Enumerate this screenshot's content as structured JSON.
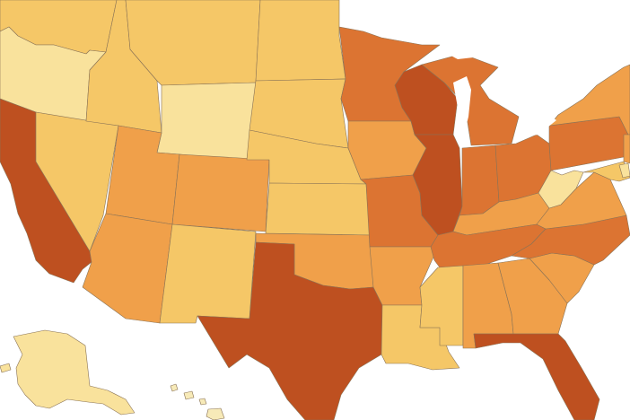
{
  "map": {
    "palette": {
      "lightest": "#f7eab8",
      "light": "#f9e29c",
      "mid_light": "#f5c767",
      "mid": "#f0a04a",
      "mid_dark": "#dc7432",
      "dark": "#be5020"
    },
    "states": [
      {
        "id": "WA",
        "shade": "mid_light"
      },
      {
        "id": "OR",
        "shade": "light"
      },
      {
        "id": "CA",
        "shade": "dark"
      },
      {
        "id": "NV",
        "shade": "mid_light"
      },
      {
        "id": "ID",
        "shade": "mid_light"
      },
      {
        "id": "MT",
        "shade": "mid_light"
      },
      {
        "id": "WY",
        "shade": "light"
      },
      {
        "id": "UT",
        "shade": "mid"
      },
      {
        "id": "CO",
        "shade": "mid"
      },
      {
        "id": "AZ",
        "shade": "mid"
      },
      {
        "id": "NM",
        "shade": "mid_light"
      },
      {
        "id": "ND",
        "shade": "mid_light"
      },
      {
        "id": "SD",
        "shade": "mid_light"
      },
      {
        "id": "NE",
        "shade": "mid_light"
      },
      {
        "id": "KS",
        "shade": "mid_light"
      },
      {
        "id": "OK",
        "shade": "mid"
      },
      {
        "id": "TX",
        "shade": "dark"
      },
      {
        "id": "MN",
        "shade": "mid_dark"
      },
      {
        "id": "IA",
        "shade": "mid"
      },
      {
        "id": "MO",
        "shade": "mid_dark"
      },
      {
        "id": "AR",
        "shade": "mid"
      },
      {
        "id": "LA",
        "shade": "mid_light"
      },
      {
        "id": "WI",
        "shade": "dark"
      },
      {
        "id": "MI",
        "shade": "mid_dark"
      },
      {
        "id": "IL",
        "shade": "dark"
      },
      {
        "id": "IN",
        "shade": "mid_dark"
      },
      {
        "id": "OH",
        "shade": "mid_dark"
      },
      {
        "id": "KY",
        "shade": "mid"
      },
      {
        "id": "TN",
        "shade": "mid_dark"
      },
      {
        "id": "MS",
        "shade": "mid_light"
      },
      {
        "id": "AL",
        "shade": "mid"
      },
      {
        "id": "GA",
        "shade": "mid"
      },
      {
        "id": "FL",
        "shade": "dark"
      },
      {
        "id": "SC",
        "shade": "mid"
      },
      {
        "id": "NC",
        "shade": "mid_dark"
      },
      {
        "id": "VA",
        "shade": "mid"
      },
      {
        "id": "WV",
        "shade": "light"
      },
      {
        "id": "PA",
        "shade": "mid_dark"
      },
      {
        "id": "NY",
        "shade": "mid"
      },
      {
        "id": "MD",
        "shade": "mid_light"
      },
      {
        "id": "DE",
        "shade": "light"
      },
      {
        "id": "NJ",
        "shade": "mid"
      },
      {
        "id": "AK",
        "shade": "light"
      },
      {
        "id": "HI",
        "shade": "lightest"
      }
    ]
  }
}
